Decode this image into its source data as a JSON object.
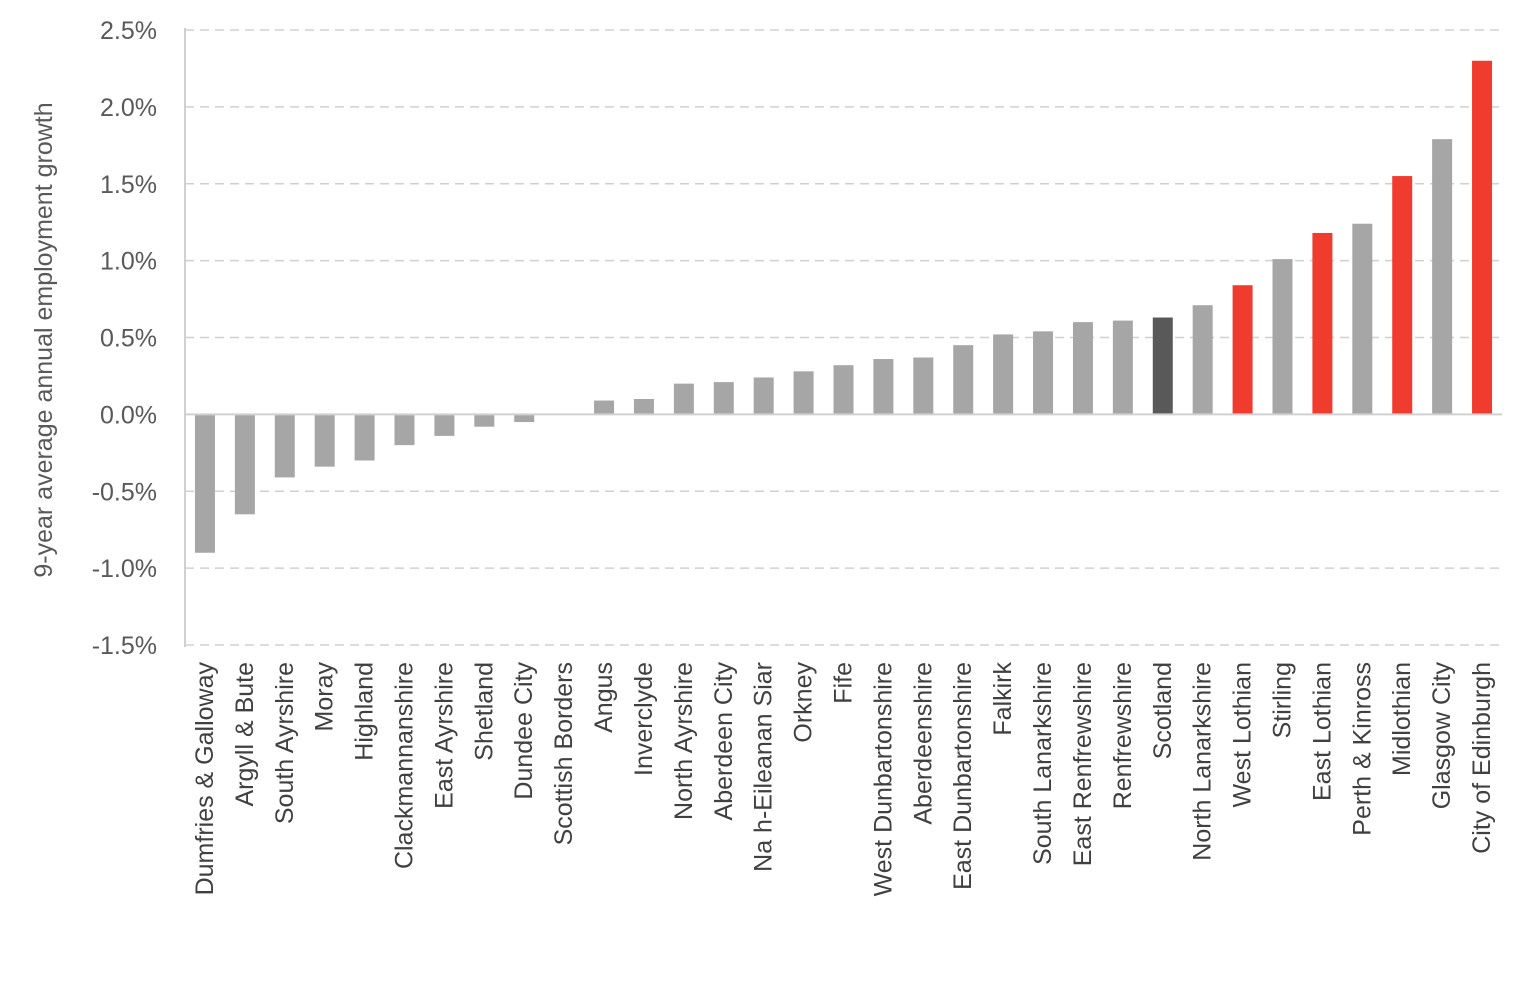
{
  "chart_data": {
    "type": "bar",
    "title": "",
    "xlabel": "",
    "ylabel": "9-year  average  annual  employment  growth",
    "ylim": [
      -1.5,
      2.5
    ],
    "ytick_values": [
      -1.5,
      -1.0,
      -0.5,
      0.0,
      0.5,
      1.0,
      1.5,
      2.0,
      2.5
    ],
    "ytick_labels": [
      "-1.5%",
      "-1.0%",
      "-0.5%",
      "0.0%",
      "0.5%",
      "1.0%",
      "1.5%",
      "2.0%",
      "2.5%"
    ],
    "grid": true,
    "legend": "none",
    "categories": [
      "Dumfries & Galloway",
      "Argyll & Bute",
      "South Ayrshire",
      "Moray",
      "Highland",
      "Clackmannanshire",
      "East Ayrshire",
      "Shetland",
      "Dundee City",
      "Scottish Borders",
      "Angus",
      "Inverclyde",
      "North Ayrshire",
      "Aberdeen City",
      "Na h-Eileanan Siar",
      "Orkney",
      "Fife",
      "West Dunbartonshire",
      "Aberdeenshire",
      "East Dunbartonshire",
      "Falkirk",
      "South Lanarkshire",
      "East Renfrewshire",
      "Renfrewshire",
      "Scotland",
      "North Lanarkshire",
      "West Lothian",
      "Stirling",
      "East Lothian",
      "Perth & Kinross",
      "Midlothian",
      "Glasgow City",
      "City of Edinburgh"
    ],
    "values": [
      -0.9,
      -0.65,
      -0.41,
      -0.34,
      -0.3,
      -0.2,
      -0.14,
      -0.08,
      -0.05,
      0.0,
      0.09,
      0.1,
      0.2,
      0.21,
      0.24,
      0.28,
      0.32,
      0.36,
      0.37,
      0.45,
      0.52,
      0.54,
      0.6,
      0.61,
      0.63,
      0.71,
      0.84,
      1.01,
      1.18,
      1.24,
      1.55,
      1.79,
      2.3
    ],
    "bar_groups": [
      "other",
      "other",
      "other",
      "other",
      "other",
      "other",
      "other",
      "other",
      "other",
      "other",
      "other",
      "other",
      "other",
      "other",
      "other",
      "other",
      "other",
      "other",
      "other",
      "other",
      "other",
      "other",
      "other",
      "other",
      "national",
      "other",
      "highlight",
      "other",
      "highlight",
      "other",
      "highlight",
      "other",
      "highlight"
    ],
    "colors": {
      "other": "#a6a6a6",
      "national": "#595959",
      "highlight": "#f03c2e"
    }
  }
}
